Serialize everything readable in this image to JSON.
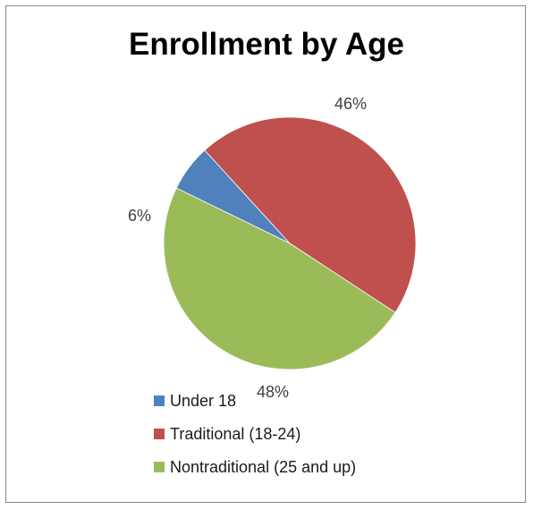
{
  "chart_data": {
    "type": "pie",
    "title": "Enrollment by Age",
    "categories": [
      "Under 18",
      "Traditional (18-24)",
      "Nontraditional (25 and up)"
    ],
    "values": [
      6,
      46,
      48
    ],
    "data_labels": [
      "6%",
      "46%",
      "48%"
    ],
    "colors": [
      "#4f81bd",
      "#c0504d",
      "#9bbb59"
    ],
    "legend_position": "bottom",
    "start_angle_deg": -154
  }
}
